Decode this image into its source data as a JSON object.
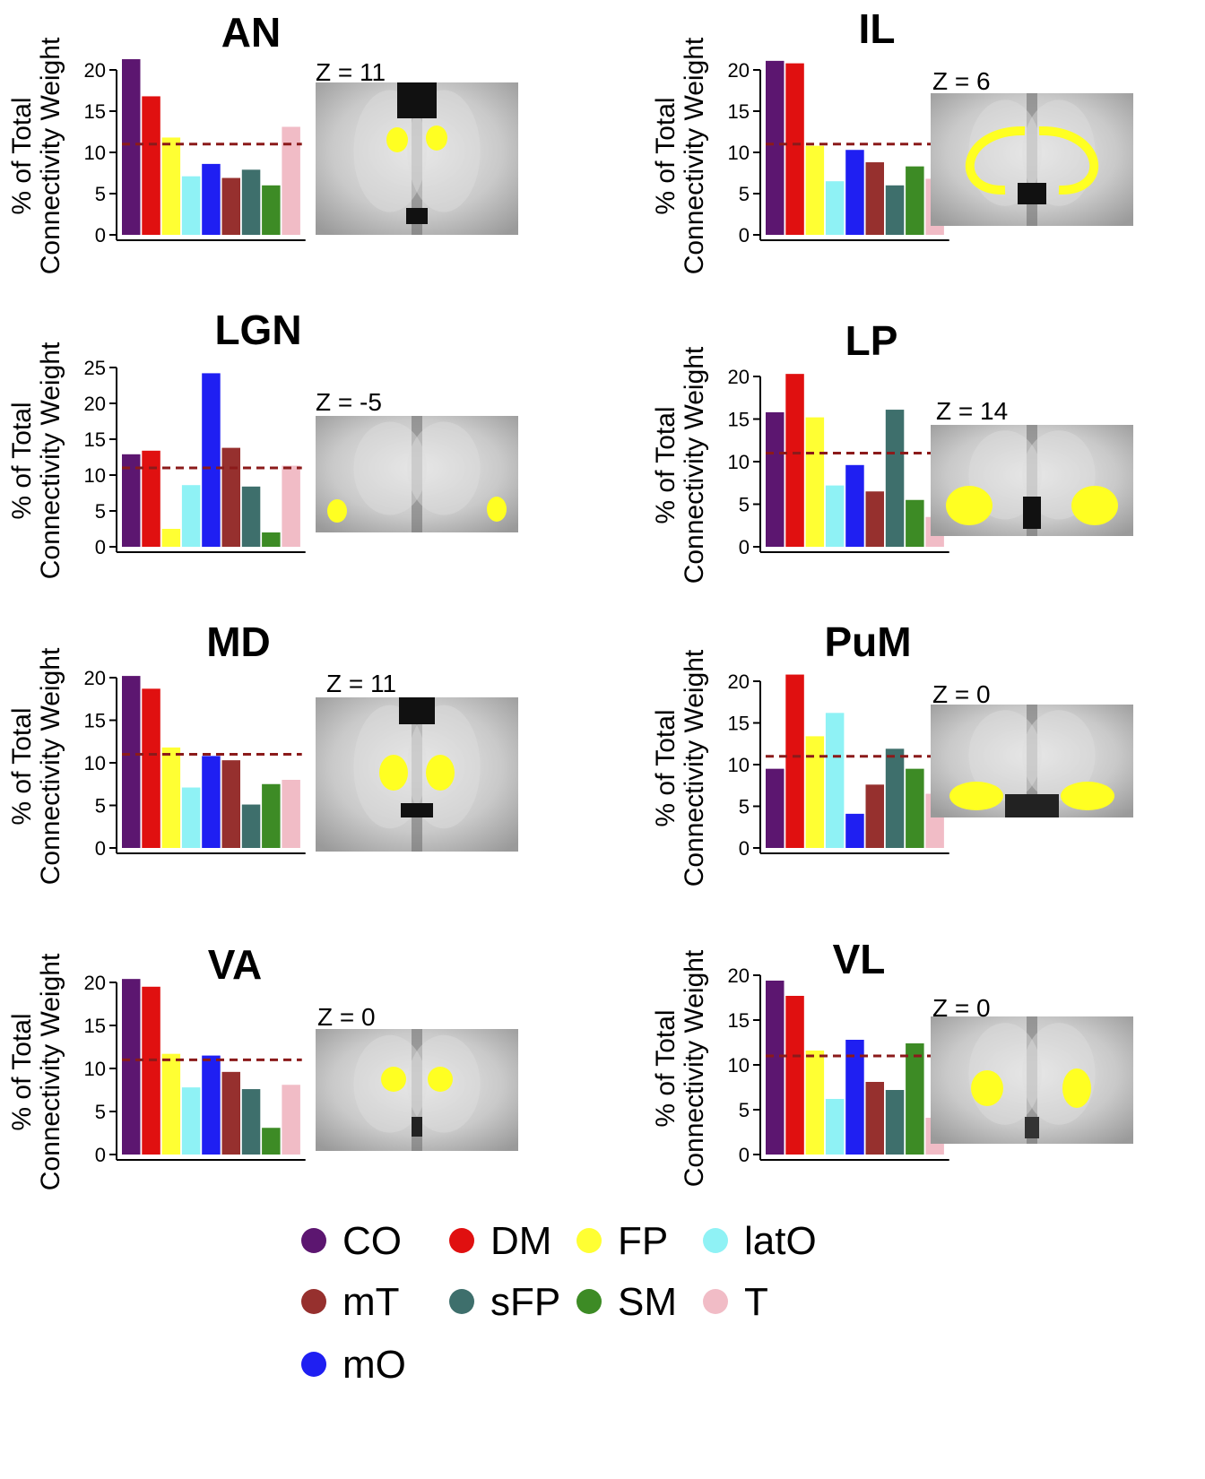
{
  "chart_data": {
    "type": "bar",
    "ylabel_line1": "% of Total",
    "ylabel_line2": "Connectivity Weight",
    "reference_line": 11,
    "categories": [
      "CO",
      "DM",
      "FP",
      "latO",
      "mO",
      "mT",
      "sFP",
      "SM",
      "T"
    ],
    "colors": {
      "CO": "#5c1670",
      "DM": "#e01010",
      "FP": "#ffff33",
      "latO": "#8ff2f5",
      "mO": "#1f1ff2",
      "mT": "#96302e",
      "sFP": "#3e6f6c",
      "SM": "#3d8b25",
      "T": "#f1bcc6",
      "refline": "#8b1a1a"
    },
    "bar_order": [
      "CO",
      "DM",
      "FP",
      "latO",
      "mO",
      "mT",
      "sFP",
      "SM",
      "T"
    ],
    "panels": [
      {
        "name": "AN",
        "z_label": "Z = 11",
        "ymax": 20,
        "yticks": [
          0,
          5,
          10,
          15,
          20
        ],
        "values": [
          21.3,
          16.8,
          11.8,
          7.1,
          8.6,
          6.9,
          7.9,
          6.0,
          13.1
        ]
      },
      {
        "name": "IL",
        "z_label": "Z = 6",
        "ymax": 20,
        "yticks": [
          0,
          5,
          10,
          15,
          20
        ],
        "values": [
          21.1,
          20.8,
          10.8,
          6.5,
          10.3,
          8.8,
          6.0,
          8.3,
          6.8
        ]
      },
      {
        "name": "LGN",
        "z_label": "Z = -5",
        "ymax": 25,
        "yticks": [
          0,
          5,
          10,
          15,
          20,
          25
        ],
        "values": [
          12.9,
          13.4,
          2.5,
          8.6,
          24.2,
          13.8,
          8.4,
          2.0,
          11.3
        ]
      },
      {
        "name": "LP",
        "z_label": "Z = 14",
        "ymax": 20,
        "yticks": [
          0,
          5,
          10,
          15,
          20
        ],
        "values": [
          15.8,
          20.3,
          15.2,
          7.2,
          9.6,
          6.5,
          16.1,
          5.5,
          3.5
        ]
      },
      {
        "name": "MD",
        "z_label": "Z = 11",
        "ymax": 20,
        "yticks": [
          0,
          5,
          10,
          15,
          20
        ],
        "values": [
          20.2,
          18.7,
          11.8,
          7.1,
          10.8,
          10.3,
          5.1,
          7.5,
          8.0
        ]
      },
      {
        "name": "PuM",
        "z_label": "Z = 0",
        "ymax": 20,
        "yticks": [
          0,
          5,
          10,
          15,
          20
        ],
        "values": [
          9.5,
          20.8,
          13.4,
          16.2,
          4.1,
          7.6,
          11.9,
          9.5,
          6.5
        ]
      },
      {
        "name": "VA",
        "z_label": "Z = 0",
        "ymax": 20,
        "yticks": [
          0,
          5,
          10,
          15,
          20
        ],
        "values": [
          20.4,
          19.5,
          11.7,
          7.8,
          11.5,
          9.6,
          7.6,
          3.1,
          8.1
        ]
      },
      {
        "name": "VL",
        "z_label": "Z = 0",
        "ymax": 20,
        "yticks": [
          0,
          5,
          10,
          15,
          20
        ],
        "values": [
          19.4,
          17.7,
          11.6,
          6.2,
          12.8,
          8.1,
          7.2,
          12.4,
          4.1
        ]
      }
    ],
    "legend": [
      "CO",
      "DM",
      "FP",
      "latO",
      "mT",
      "sFP",
      "SM",
      "T",
      "mO"
    ]
  }
}
